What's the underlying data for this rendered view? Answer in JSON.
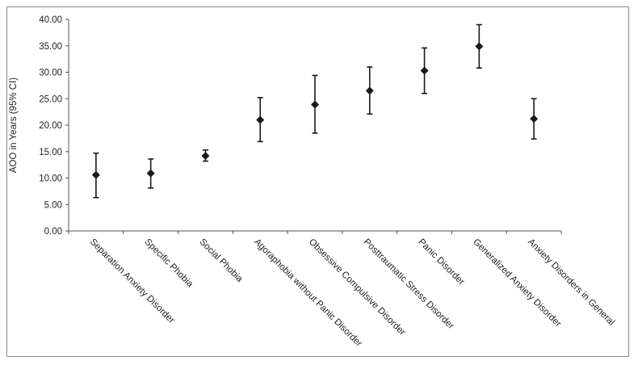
{
  "chart_data": {
    "type": "scatter",
    "title": "",
    "xlabel": "",
    "ylabel": "AOO in Years (95% CI)",
    "ylim": [
      0,
      40
    ],
    "yticks": [
      "0.00",
      "5.00",
      "10.00",
      "15.00",
      "20.00",
      "25.00",
      "30.00",
      "35.00",
      "40.00"
    ],
    "grid": false,
    "legend": "none",
    "marker": "diamond",
    "color": "#1a1a1a",
    "categories": [
      "Separation Anxiety Disorder",
      "Specific Phobia",
      "Social Phobia",
      "Agoraphobia without Panic Disorder",
      "Obsessive Compulsive Disorder",
      "Posttraumatic Stress Disorder",
      "Panic Disorder",
      "Generalized Anxiety Disorder",
      "Anxiety Disorders in General"
    ],
    "values": [
      10.6,
      10.9,
      14.2,
      21.0,
      23.9,
      26.5,
      30.3,
      34.9,
      21.2
    ],
    "ci_lower": [
      6.3,
      8.1,
      13.2,
      16.9,
      18.5,
      22.1,
      26.0,
      30.8,
      17.4
    ],
    "ci_upper": [
      14.7,
      13.6,
      15.3,
      25.2,
      29.4,
      31.0,
      34.6,
      39.0,
      25.0
    ]
  }
}
